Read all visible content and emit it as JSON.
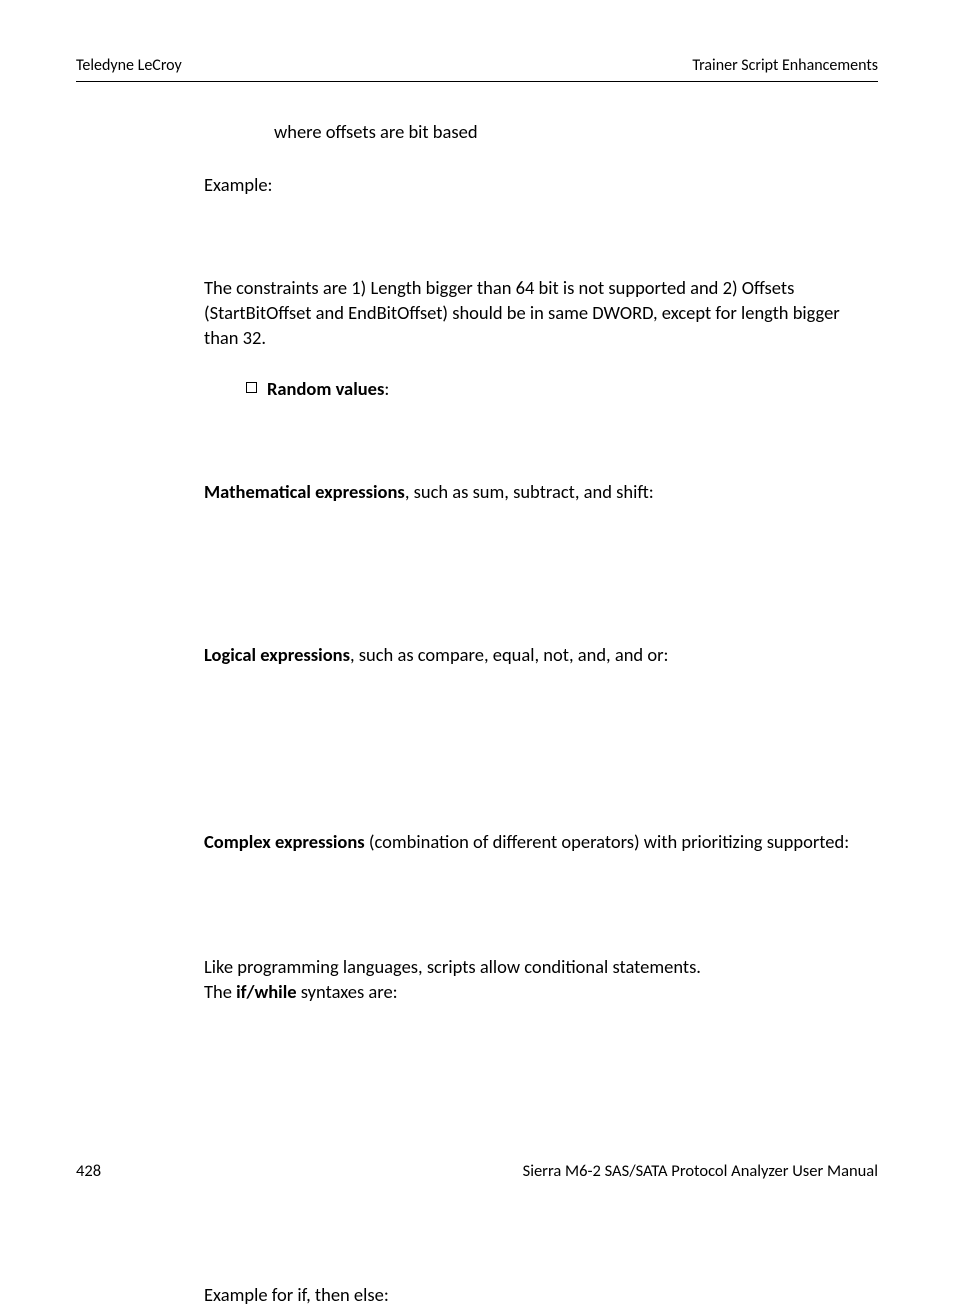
{
  "header": {
    "left": "Teledyne LeCroy",
    "right": "Trainer Script Enhancements"
  },
  "body": {
    "offset_note": "where offsets are bit based",
    "example_label": "Example:",
    "constraints": "The constraints are 1) Length bigger than 64 bit is not supported and 2) Offsets (StartBitOffset and EndBitOffset) should be in same DWORD, except for length bigger than 32.",
    "random_values_label": "Random values",
    "random_values_colon": ":",
    "math_expr_label": "Mathematical expressions",
    "math_expr_rest": ", such as sum, subtract, and shift:",
    "logical_expr_label": "Logical expressions",
    "logical_expr_rest": ", such as compare, equal, not, and, and or:",
    "complex_expr_label": "Complex expressions",
    "complex_expr_rest": " (combination of different operators) with prioritizing supported:",
    "conditional_line": "Like programming languages, scripts allow conditional statements.",
    "ifwhile_prefix": "The ",
    "ifwhile_label": "if/while",
    "ifwhile_suffix": " syntaxes are:",
    "example_if": "Example for if, then else:"
  },
  "footer": {
    "page_number": "428",
    "manual_title": "Sierra M6-2 SAS/SATA Protocol Analyzer User Manual"
  }
}
